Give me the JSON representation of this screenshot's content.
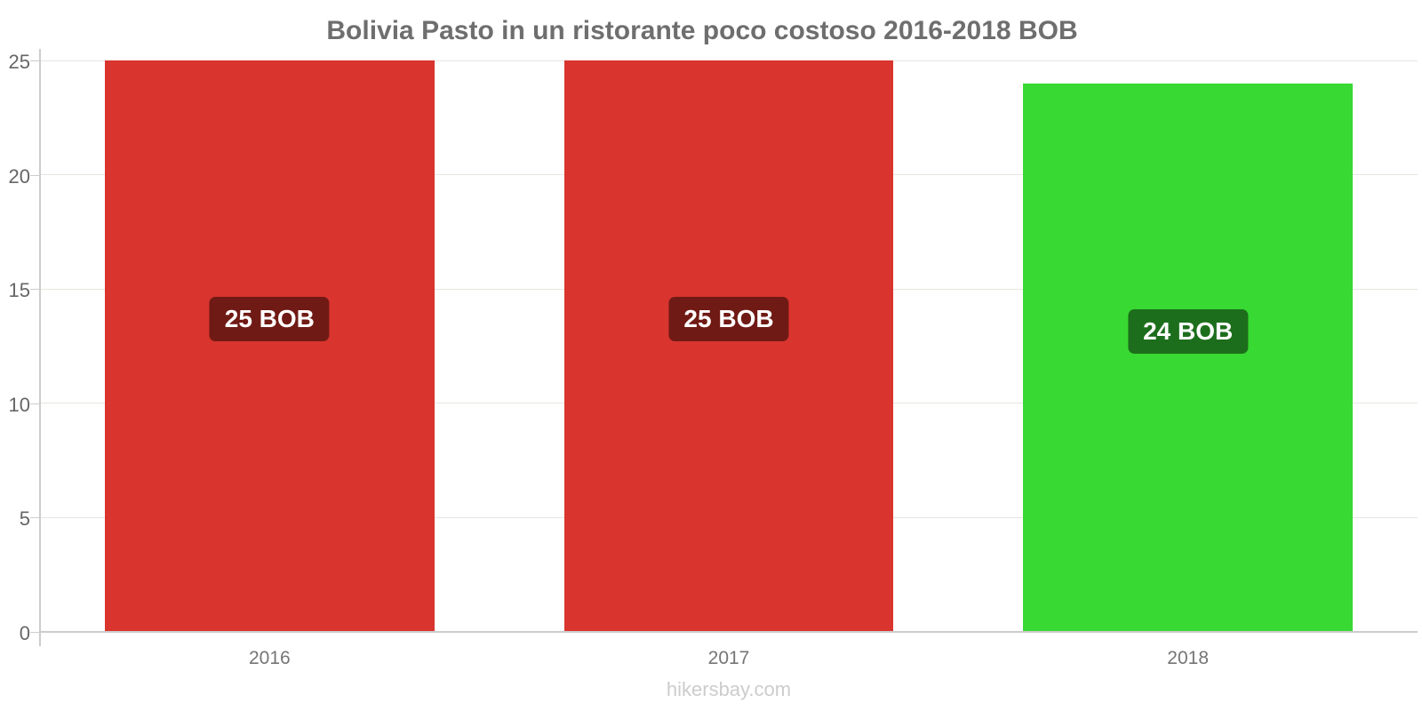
{
  "chart": {
    "title": "Bolivia Pasto in un ristorante poco costoso 2016-2018 BOB",
    "footer": "hikersbay.com"
  },
  "chart_data": {
    "type": "bar",
    "title": "Bolivia Pasto in un ristorante poco costoso 2016-2018 BOB",
    "categories": [
      "2016",
      "2017",
      "2018"
    ],
    "values": [
      25,
      25,
      24
    ],
    "value_labels": [
      "25 BOB",
      "25 BOB",
      "24 BOB"
    ],
    "unit": "BOB",
    "xlabel": "",
    "ylabel": "",
    "ylim": [
      0,
      25
    ],
    "yticks": [
      0,
      5,
      10,
      15,
      20,
      25
    ],
    "grid": true,
    "legend": false,
    "watermark": "hikersbay.com",
    "bar_colors": [
      "#d9342e",
      "#d9342e",
      "#38d932"
    ],
    "value_label_bg_colors": [
      "#701a15",
      "#701a15",
      "#1d6e1c"
    ]
  },
  "colors": {
    "title_text": "#6e6e6e",
    "tick_text": "#666666",
    "category_text": "#757575",
    "gridline": "#e8e5e0",
    "axis": "#cccccc",
    "value_text": "#ffffff",
    "footer_text": "#cccccc",
    "background": "#ffffff"
  }
}
